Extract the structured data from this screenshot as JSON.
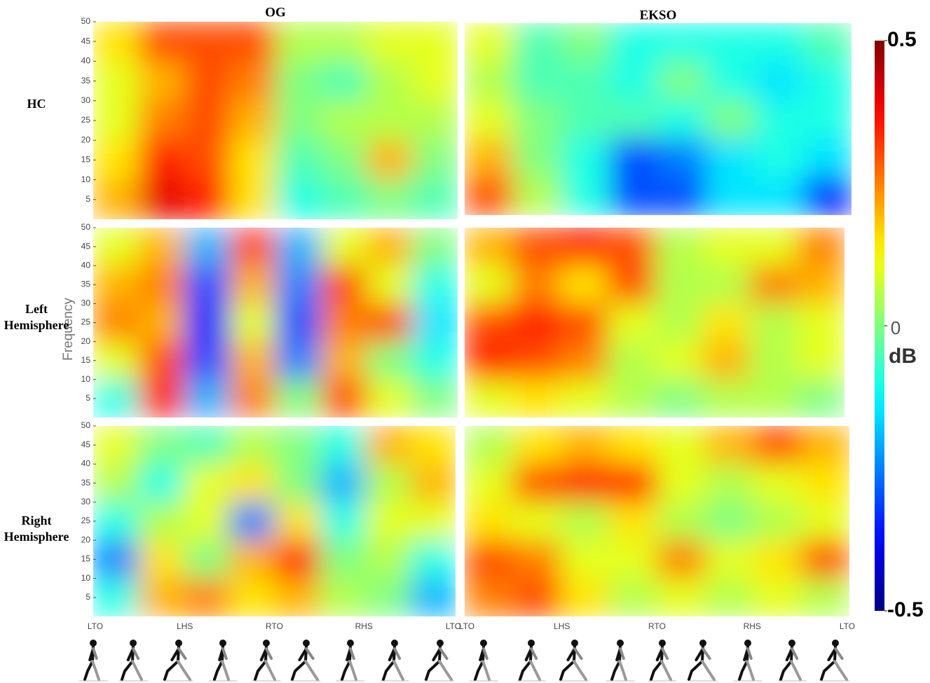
{
  "chart_data": [
    {
      "type": "heatmap",
      "title": "OG",
      "row_label": "HC",
      "ylim": [
        0,
        50
      ],
      "yticks": [
        5,
        10,
        15,
        20,
        25,
        30,
        35,
        40,
        45,
        50
      ],
      "values": [
        [
          0.15,
          0.3,
          0.3,
          0.3,
          0.05,
          0.05,
          0.1,
          0.1
        ],
        [
          0.1,
          0.2,
          0.3,
          0.25,
          0.0,
          -0.05,
          0.05,
          0.1
        ],
        [
          0.1,
          0.25,
          0.3,
          0.2,
          0.0,
          0.05,
          0.05,
          0.05
        ],
        [
          0.15,
          0.35,
          0.3,
          0.15,
          -0.05,
          0.0,
          0.2,
          0.0
        ],
        [
          0.2,
          0.4,
          0.35,
          0.15,
          -0.1,
          -0.05,
          0.0,
          -0.05
        ]
      ]
    },
    {
      "type": "heatmap",
      "title": "EKSO",
      "ylim": [
        0,
        50
      ],
      "values": [
        [
          0.1,
          -0.05,
          0.0,
          -0.1,
          -0.1,
          -0.1,
          -0.1,
          -0.05
        ],
        [
          0.05,
          -0.05,
          -0.05,
          -0.1,
          0.0,
          -0.1,
          -0.15,
          -0.1
        ],
        [
          0.1,
          0.0,
          -0.05,
          -0.05,
          -0.1,
          0.0,
          -0.1,
          -0.1
        ],
        [
          0.2,
          0.0,
          -0.1,
          -0.3,
          -0.25,
          -0.15,
          -0.1,
          -0.15
        ],
        [
          0.3,
          0.05,
          -0.1,
          -0.3,
          -0.3,
          -0.15,
          -0.15,
          -0.35
        ]
      ]
    },
    {
      "type": "heatmap",
      "row_label": "Left Hemisphere",
      "ylabel": "Frequency",
      "ylim": [
        0,
        50
      ],
      "yticks": [
        5,
        10,
        15,
        20,
        25,
        30,
        35,
        40,
        45,
        50
      ],
      "values": [
        [
          0.1,
          0.2,
          -0.2,
          0.3,
          -0.2,
          0.1,
          0.2,
          0.0
        ],
        [
          0.2,
          0.25,
          -0.3,
          0.2,
          -0.25,
          0.3,
          0.1,
          -0.1
        ],
        [
          0.25,
          0.2,
          -0.35,
          0.1,
          -0.3,
          0.25,
          0.3,
          -0.15
        ],
        [
          0.1,
          0.3,
          -0.3,
          0.2,
          -0.25,
          0.2,
          0.0,
          -0.1
        ],
        [
          -0.1,
          0.35,
          -0.2,
          0.25,
          0.0,
          0.3,
          0.1,
          0.0
        ]
      ]
    },
    {
      "type": "heatmap",
      "ylim": [
        0,
        50
      ],
      "values": [
        [
          0.2,
          0.3,
          0.35,
          0.3,
          0.05,
          0.1,
          0.1,
          0.25
        ],
        [
          0.1,
          0.25,
          0.15,
          0.3,
          0.05,
          0.05,
          0.25,
          0.2
        ],
        [
          0.3,
          0.35,
          0.3,
          0.1,
          0.05,
          0.15,
          0.05,
          0.1
        ],
        [
          0.35,
          0.3,
          0.25,
          0.05,
          0.1,
          0.2,
          0.05,
          0.1
        ],
        [
          0.1,
          0.15,
          0.1,
          0.05,
          0.0,
          0.05,
          0.05,
          0.0
        ]
      ]
    },
    {
      "type": "heatmap",
      "row_label": "Right Hemisphere",
      "ylim": [
        0,
        50
      ],
      "yticks": [
        5,
        10,
        15,
        20,
        25,
        30,
        35,
        40,
        45,
        50
      ],
      "categories": [
        "LTO",
        "LHS",
        "RTO",
        "RHS",
        "LTO"
      ],
      "values": [
        [
          0.1,
          0.0,
          -0.05,
          0.05,
          0.0,
          -0.1,
          0.2,
          0.15
        ],
        [
          0.05,
          -0.1,
          0.1,
          0.15,
          0.0,
          -0.2,
          0.05,
          0.2
        ],
        [
          -0.1,
          0.05,
          0.1,
          -0.25,
          0.15,
          -0.1,
          0.1,
          0.1
        ],
        [
          -0.25,
          0.15,
          0.0,
          0.2,
          0.35,
          0.0,
          0.05,
          -0.1
        ],
        [
          -0.1,
          0.2,
          0.25,
          0.15,
          0.2,
          0.05,
          0.0,
          -0.2
        ]
      ]
    },
    {
      "type": "heatmap",
      "ylim": [
        0,
        50
      ],
      "categories": [
        "LTO",
        "LHS",
        "RTO",
        "RHS",
        "LTO"
      ],
      "values": [
        [
          0.05,
          0.15,
          0.2,
          0.15,
          0.1,
          0.2,
          0.3,
          0.2
        ],
        [
          0.1,
          0.3,
          0.35,
          0.35,
          0.1,
          0.05,
          0.1,
          0.15
        ],
        [
          0.15,
          0.1,
          0.05,
          0.15,
          0.05,
          0.0,
          0.05,
          0.1
        ],
        [
          0.3,
          0.25,
          0.1,
          0.1,
          0.25,
          0.1,
          0.15,
          0.3
        ],
        [
          0.25,
          0.3,
          0.15,
          0.05,
          0.1,
          0.05,
          0.1,
          0.05
        ]
      ]
    }
  ],
  "colorbar": {
    "colormap": "jet",
    "clim": [
      -0.5,
      0.5
    ],
    "ticks": [
      -0.5,
      0,
      0.5
    ],
    "label": "dB"
  }
}
